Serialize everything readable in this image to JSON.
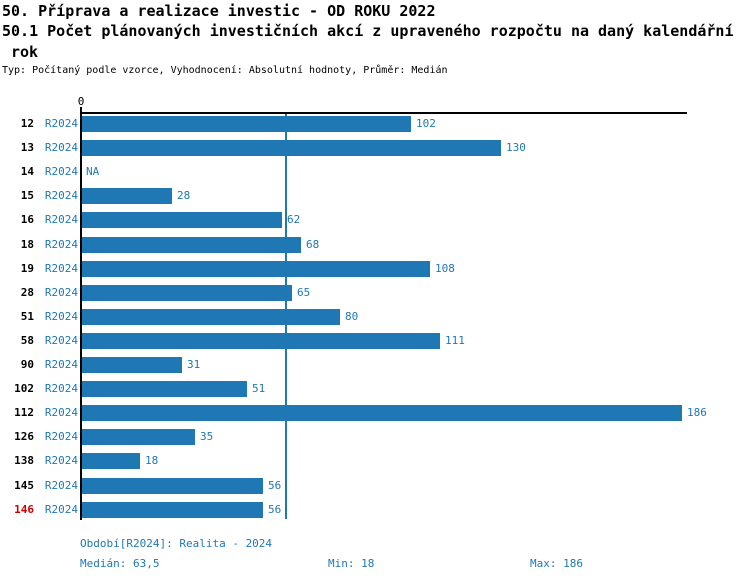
{
  "header": {
    "title_line1": "50. Příprava a realizace investic - OD ROKU 2022",
    "title_line2": "50.1 Počet plánovaných investičních akcí z upraveného rozpočtu na daný kalendářní",
    "title_line3": "rok",
    "meta": "Typ: Počítaný podle vzorce, Vyhodnocení: Absolutní hodnoty, Průměr: Medián"
  },
  "chart_data": {
    "type": "bar",
    "orientation": "horizontal",
    "title": "50.1 Počet plánovaných investičních akcí z upraveného rozpočtu na daný kalendářní rok",
    "series_name": "R2024",
    "x_axis": {
      "origin_tick_label": "0",
      "min": 0,
      "max": 187.5,
      "grid": false
    },
    "median_line_value": 63.5,
    "na_label": "NA",
    "rows": [
      {
        "category": "12",
        "period": "R2024",
        "value": 102,
        "highlight": false
      },
      {
        "category": "13",
        "period": "R2024",
        "value": 130,
        "highlight": false
      },
      {
        "category": "14",
        "period": "R2024",
        "value": null,
        "highlight": false
      },
      {
        "category": "15",
        "period": "R2024",
        "value": 28,
        "highlight": false
      },
      {
        "category": "16",
        "period": "R2024",
        "value": 62,
        "highlight": false
      },
      {
        "category": "18",
        "period": "R2024",
        "value": 68,
        "highlight": false
      },
      {
        "category": "19",
        "period": "R2024",
        "value": 108,
        "highlight": false
      },
      {
        "category": "28",
        "period": "R2024",
        "value": 65,
        "highlight": false
      },
      {
        "category": "51",
        "period": "R2024",
        "value": 80,
        "highlight": false
      },
      {
        "category": "58",
        "period": "R2024",
        "value": 111,
        "highlight": false
      },
      {
        "category": "90",
        "period": "R2024",
        "value": 31,
        "highlight": false
      },
      {
        "category": "102",
        "period": "R2024",
        "value": 51,
        "highlight": false
      },
      {
        "category": "112",
        "period": "R2024",
        "value": 186,
        "highlight": false
      },
      {
        "category": "126",
        "period": "R2024",
        "value": 35,
        "highlight": false
      },
      {
        "category": "138",
        "period": "R2024",
        "value": 18,
        "highlight": false
      },
      {
        "category": "145",
        "period": "R2024",
        "value": 56,
        "highlight": false
      },
      {
        "category": "146",
        "period": "R2024",
        "value": 56,
        "highlight": true
      }
    ],
    "colors": {
      "bar": "#1f77b4",
      "value_label": "#1f77b4",
      "period_label": "#1f77b4",
      "category_label": "#000000",
      "highlight_category_label": "#cc0000",
      "median_line": "#1f77b4",
      "axis": "#000000"
    }
  },
  "footer": {
    "period_label": "Období[R2024]: Realita - 2024",
    "median_label": "Medián: 63,5",
    "min_label": "Min: 18",
    "max_label": "Max: 186"
  }
}
